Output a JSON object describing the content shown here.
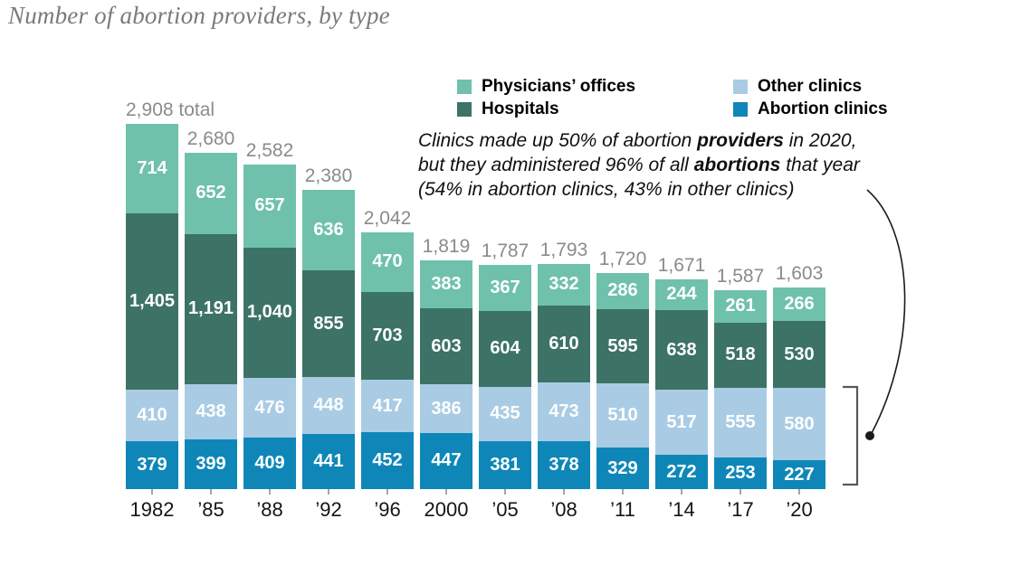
{
  "page": {
    "title": "Number of abortion providers, by type"
  },
  "legend": {
    "columns": [
      {
        "items": [
          {
            "label": "Physicians’ offices",
            "color": "#6fc1ac"
          },
          {
            "label": "Hospitals",
            "color": "#3c7366"
          }
        ]
      },
      {
        "items": [
          {
            "label": "Other clinics",
            "color": "#a9cce4"
          },
          {
            "label": "Abortion clinics",
            "color": "#0e87b8"
          }
        ]
      }
    ]
  },
  "annotation": {
    "lines": [
      [
        {
          "text": "Clinics made up 50% of abortion "
        },
        {
          "text": "providers",
          "bold": true
        },
        {
          "text": " in 2020,"
        }
      ],
      [
        {
          "text": "but they administered 96% of all "
        },
        {
          "text": "abortions",
          "bold": true
        },
        {
          "text": " that year"
        }
      ],
      [
        {
          "text": "(54% in abortion clinics, 43% in other clinics)"
        }
      ]
    ]
  },
  "chart_data": {
    "type": "bar",
    "stacked": true,
    "stack_order": "series listed top-to-bottom within each bar",
    "grid": false,
    "legend_position": "top",
    "ylim": [
      0,
      2908
    ],
    "categories": [
      "1982",
      "’85",
      "’88",
      "’92",
      "’96",
      "2000",
      "’05",
      "’08",
      "’11",
      "’14",
      "’17",
      "’20"
    ],
    "totals": [
      2908,
      2680,
      2582,
      2380,
      2042,
      1819,
      1787,
      1793,
      1720,
      1671,
      1587,
      1603
    ],
    "total_labels": [
      "2,908 total",
      "2,680",
      "2,582",
      "2,380",
      "2,042",
      "1,819",
      "1,787",
      "1,793",
      "1,720",
      "1,671",
      "1,587",
      "1,603"
    ],
    "series": [
      {
        "name": "Physicians’ offices",
        "color": "#6fc1ac",
        "values": [
          714,
          652,
          657,
          636,
          470,
          383,
          367,
          332,
          286,
          244,
          261,
          266
        ],
        "labels": [
          "714",
          "652",
          "657",
          "636",
          "470",
          "383",
          "367",
          "332",
          "286",
          "244",
          "261",
          "266"
        ]
      },
      {
        "name": "Hospitals",
        "color": "#3c7366",
        "values": [
          1405,
          1191,
          1040,
          855,
          703,
          603,
          604,
          610,
          595,
          638,
          518,
          530
        ],
        "labels": [
          "1,405",
          "1,191",
          "1,040",
          "855",
          "703",
          "603",
          "604",
          "610",
          "595",
          "638",
          "518",
          "530"
        ]
      },
      {
        "name": "Other clinics",
        "color": "#a9cce4",
        "values": [
          410,
          438,
          476,
          448,
          417,
          386,
          435,
          473,
          510,
          517,
          555,
          580
        ],
        "labels": [
          "410",
          "438",
          "476",
          "448",
          "417",
          "386",
          "435",
          "473",
          "510",
          "517",
          "555",
          "580"
        ]
      },
      {
        "name": "Abortion clinics",
        "color": "#0e87b8",
        "values": [
          379,
          399,
          409,
          441,
          452,
          447,
          381,
          378,
          329,
          272,
          253,
          227
        ],
        "labels": [
          "379",
          "399",
          "409",
          "441",
          "452",
          "447",
          "381",
          "378",
          "329",
          "272",
          "253",
          "227"
        ]
      }
    ],
    "annotation_pointer": {
      "targets": "other clinics + abortion clinics segments of ’20 bar",
      "dot_color": "#1a1a1a",
      "bracket_color": "#58595b"
    }
  }
}
